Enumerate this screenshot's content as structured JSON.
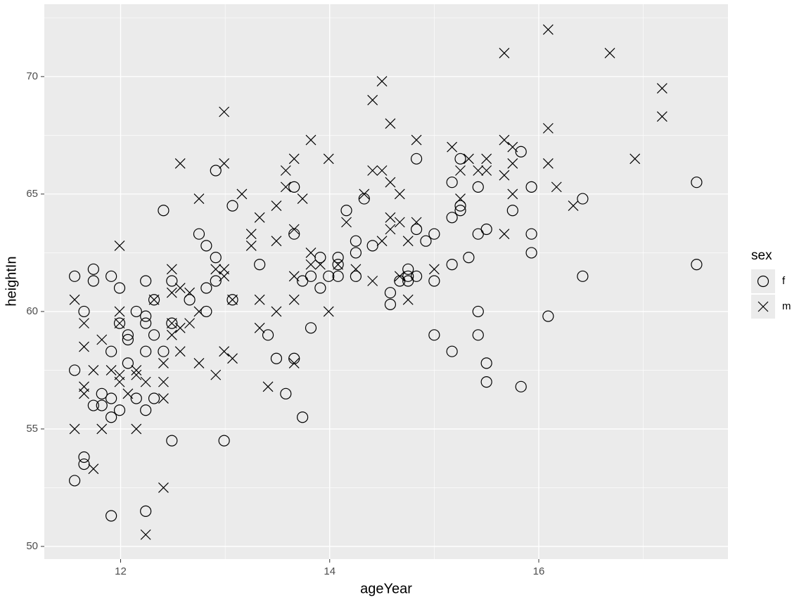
{
  "chart_data": {
    "type": "scatter",
    "x_label": "ageYear",
    "y_label": "heightIn",
    "xlim": [
      11.27,
      17.81
    ],
    "ylim": [
      49.46,
      73.08
    ],
    "xticks": [
      12,
      14,
      16
    ],
    "yticks": [
      50,
      55,
      60,
      65,
      70
    ],
    "grid": true,
    "minor_grid": true,
    "legend_title": "sex",
    "legend_position": "right",
    "series": [
      {
        "name": "f",
        "shape": "circle",
        "color": "#000000",
        "x": [
          11.56,
          11.56,
          11.56,
          11.65,
          11.65,
          11.65,
          11.74,
          11.74,
          11.74,
          11.82,
          11.82,
          11.91,
          11.91,
          11.91,
          11.91,
          11.91,
          11.99,
          11.99,
          11.99,
          12.07,
          12.07,
          12.07,
          12.15,
          12.15,
          12.24,
          12.24,
          12.24,
          12.24,
          12.24,
          12.24,
          12.32,
          12.32,
          12.32,
          12.41,
          12.41,
          12.49,
          12.49,
          12.49,
          12.66,
          12.75,
          12.82,
          12.82,
          12.82,
          12.91,
          12.91,
          12.91,
          12.99,
          13.07,
          13.07,
          13.33,
          13.41,
          13.49,
          13.58,
          13.66,
          13.66,
          13.66,
          13.74,
          13.74,
          13.82,
          13.82,
          13.91,
          13.91,
          13.99,
          14.08,
          14.08,
          14.08,
          14.16,
          14.25,
          14.25,
          14.25,
          14.33,
          14.41,
          14.58,
          14.58,
          14.67,
          14.75,
          14.75,
          14.75,
          14.83,
          14.83,
          14.83,
          14.92,
          15.0,
          15.0,
          15.0,
          15.17,
          15.17,
          15.17,
          15.17,
          15.25,
          15.25,
          15.25,
          15.33,
          15.42,
          15.42,
          15.42,
          15.42,
          15.5,
          15.5,
          15.5,
          15.75,
          15.83,
          15.83,
          15.93,
          15.93,
          15.93,
          16.09,
          16.42,
          16.42,
          17.51,
          17.51
        ],
        "values": [
          61.5,
          57.5,
          52.8,
          60.0,
          53.8,
          53.5,
          61.8,
          61.3,
          56.0,
          56.5,
          56.0,
          61.5,
          58.3,
          56.3,
          55.5,
          51.3,
          61.0,
          59.5,
          55.8,
          59.0,
          58.8,
          57.8,
          60.0,
          56.3,
          61.3,
          59.8,
          59.5,
          58.3,
          55.8,
          51.5,
          60.5,
          59.0,
          56.3,
          64.3,
          58.3,
          61.3,
          59.5,
          54.5,
          60.5,
          63.3,
          62.8,
          61.0,
          60.0,
          66.0,
          62.3,
          61.3,
          54.5,
          64.5,
          60.5,
          62.0,
          59.0,
          58.0,
          56.5,
          65.3,
          63.3,
          58.0,
          61.3,
          55.5,
          61.5,
          59.3,
          62.3,
          61.0,
          61.5,
          62.3,
          62.0,
          61.5,
          64.3,
          63.0,
          62.5,
          61.5,
          64.8,
          62.8,
          60.8,
          60.3,
          61.3,
          61.8,
          61.5,
          61.3,
          63.5,
          61.5,
          66.5,
          63.0,
          63.3,
          61.3,
          59.0,
          65.5,
          64.0,
          62.0,
          58.3,
          66.5,
          64.5,
          64.3,
          62.3,
          65.3,
          63.3,
          60.0,
          59.0,
          63.5,
          57.8,
          57.0,
          64.3,
          66.8,
          56.8,
          65.3,
          63.3,
          62.5,
          59.8,
          64.8,
          61.5,
          65.5,
          62.0
        ]
      },
      {
        "name": "m",
        "shape": "x",
        "color": "#000000",
        "x": [
          11.56,
          11.56,
          11.65,
          11.65,
          11.65,
          11.65,
          11.74,
          11.74,
          11.82,
          11.82,
          11.91,
          11.99,
          11.99,
          11.99,
          11.99,
          11.99,
          12.07,
          12.15,
          12.15,
          12.15,
          12.24,
          12.24,
          12.32,
          12.41,
          12.41,
          12.41,
          12.41,
          12.49,
          12.49,
          12.49,
          12.49,
          12.57,
          12.57,
          12.57,
          12.57,
          12.66,
          12.66,
          12.75,
          12.75,
          12.75,
          12.91,
          12.91,
          12.99,
          12.99,
          12.99,
          12.99,
          12.99,
          13.07,
          13.07,
          13.16,
          13.25,
          13.25,
          13.33,
          13.33,
          13.33,
          13.41,
          13.49,
          13.49,
          13.49,
          13.58,
          13.58,
          13.66,
          13.66,
          13.66,
          13.66,
          13.66,
          13.74,
          13.82,
          13.82,
          13.82,
          13.91,
          13.99,
          13.99,
          14.08,
          14.16,
          14.25,
          14.33,
          14.41,
          14.41,
          14.41,
          14.5,
          14.5,
          14.5,
          14.58,
          14.58,
          14.58,
          14.58,
          14.67,
          14.67,
          14.67,
          14.75,
          14.75,
          14.83,
          14.83,
          15.0,
          15.17,
          15.25,
          15.25,
          15.33,
          15.42,
          15.5,
          15.5,
          15.67,
          15.67,
          15.67,
          15.67,
          15.75,
          15.75,
          15.75,
          16.09,
          16.09,
          16.09,
          16.17,
          16.33,
          16.68,
          16.92,
          17.18,
          17.18
        ],
        "values": [
          60.5,
          55.0,
          59.5,
          58.5,
          56.8,
          56.5,
          57.5,
          53.3,
          58.8,
          55.0,
          57.5,
          62.8,
          60.0,
          59.5,
          57.3,
          57.0,
          56.5,
          57.5,
          57.3,
          55.0,
          57.0,
          50.5,
          60.5,
          57.8,
          57.0,
          56.3,
          52.5,
          61.8,
          60.8,
          59.5,
          59.0,
          66.3,
          61.0,
          59.3,
          58.3,
          60.8,
          59.5,
          64.8,
          60.0,
          57.8,
          61.8,
          57.3,
          68.5,
          66.3,
          61.8,
          61.5,
          58.3,
          60.5,
          58.0,
          65.0,
          63.3,
          62.8,
          64.0,
          60.5,
          59.3,
          56.8,
          64.5,
          63.0,
          60.0,
          66.0,
          65.3,
          66.5,
          63.5,
          61.5,
          60.5,
          57.8,
          64.8,
          67.3,
          62.5,
          62.0,
          62.0,
          66.5,
          60.0,
          62.0,
          63.8,
          61.8,
          65.0,
          69.0,
          66.0,
          61.3,
          69.8,
          66.0,
          63.0,
          68.0,
          65.5,
          64.0,
          63.5,
          65.0,
          63.8,
          61.5,
          63.0,
          60.5,
          67.3,
          63.8,
          61.8,
          67.0,
          66.0,
          64.8,
          66.5,
          66.0,
          66.5,
          66.0,
          71.0,
          67.3,
          65.8,
          63.3,
          67.0,
          66.3,
          65.0,
          72.0,
          67.8,
          66.3,
          65.3,
          64.5,
          71.0,
          66.5,
          69.5,
          68.3
        ]
      }
    ]
  }
}
